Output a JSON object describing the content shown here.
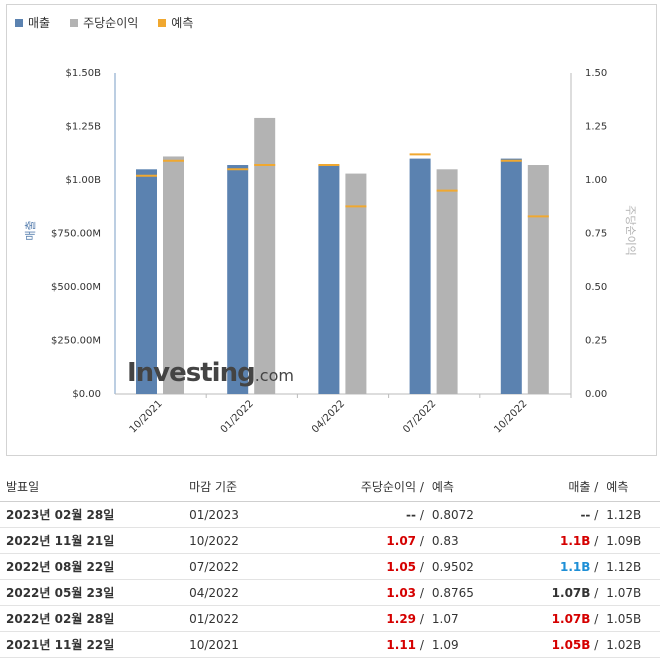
{
  "legend": [
    {
      "label": "매출",
      "color": "#5b82b0"
    },
    {
      "label": "주당순이익",
      "color": "#b3b3b3"
    },
    {
      "label": "예측",
      "color": "#f0a830"
    }
  ],
  "chart_data": {
    "type": "bar",
    "categories": [
      "10/2021",
      "01/2022",
      "04/2022",
      "07/2022",
      "10/2022"
    ],
    "series": [
      {
        "name": "매출",
        "values": [
          1.05,
          1.07,
          1.07,
          1.1,
          1.1
        ],
        "axis": "left",
        "unit": "B"
      },
      {
        "name": "주당순이익",
        "values": [
          1.11,
          1.29,
          1.03,
          1.05,
          1.07
        ],
        "axis": "right"
      }
    ],
    "forecasts": {
      "매출": [
        1.02,
        1.05,
        1.07,
        1.12,
        1.09
      ],
      "주당순이익": [
        1.09,
        1.07,
        0.8765,
        0.9502,
        0.83
      ]
    },
    "ylabel_left": "매출",
    "ylabel_right": "주당순이익",
    "yticks_left": [
      "$0.00",
      "$250.00M",
      "$500.00M",
      "$750.00M",
      "$1.00B",
      "$1.25B",
      "$1.50B"
    ],
    "yticks_right": [
      "0.00",
      "0.25",
      "0.50",
      "0.75",
      "1.00",
      "1.25",
      "1.50"
    ],
    "ylim": [
      0,
      1.5
    ],
    "colors": {
      "revenue": "#5b82b0",
      "eps": "#b3b3b3",
      "forecast": "#f0a830"
    }
  },
  "watermark": {
    "main": "Investing",
    "suffix": ".com"
  },
  "table": {
    "headers": {
      "date": "발표일",
      "period": "마감 기준",
      "eps": "주당순이익",
      "eps_forecast": "예측",
      "revenue": "매출",
      "revenue_forecast": "예측",
      "slash": "/"
    },
    "rows": [
      {
        "date": "2023년 02월 28일",
        "period": "01/2023",
        "eps": "--",
        "eps_forecast": "0.8072",
        "revenue": "--",
        "revenue_forecast": "1.12B",
        "eps_class": "dark",
        "rev_class": "dark"
      },
      {
        "date": "2022년 11월 21일",
        "period": "10/2022",
        "eps": "1.07",
        "eps_forecast": "0.83",
        "revenue": "1.1B",
        "revenue_forecast": "1.09B",
        "eps_class": "red",
        "rev_class": "red"
      },
      {
        "date": "2022년 08월 22일",
        "period": "07/2022",
        "eps": "1.05",
        "eps_forecast": "0.9502",
        "revenue": "1.1B",
        "revenue_forecast": "1.12B",
        "eps_class": "red",
        "rev_class": "blue"
      },
      {
        "date": "2022년 05월 23일",
        "period": "04/2022",
        "eps": "1.03",
        "eps_forecast": "0.8765",
        "revenue": "1.07B",
        "revenue_forecast": "1.07B",
        "eps_class": "red",
        "rev_class": "dark"
      },
      {
        "date": "2022년 02월 28일",
        "period": "01/2022",
        "eps": "1.29",
        "eps_forecast": "1.07",
        "revenue": "1.07B",
        "revenue_forecast": "1.05B",
        "eps_class": "red",
        "rev_class": "red"
      },
      {
        "date": "2021년 11월 22일",
        "period": "10/2021",
        "eps": "1.11",
        "eps_forecast": "1.09",
        "revenue": "1.05B",
        "revenue_forecast": "1.02B",
        "eps_class": "red",
        "rev_class": "red"
      }
    ]
  }
}
